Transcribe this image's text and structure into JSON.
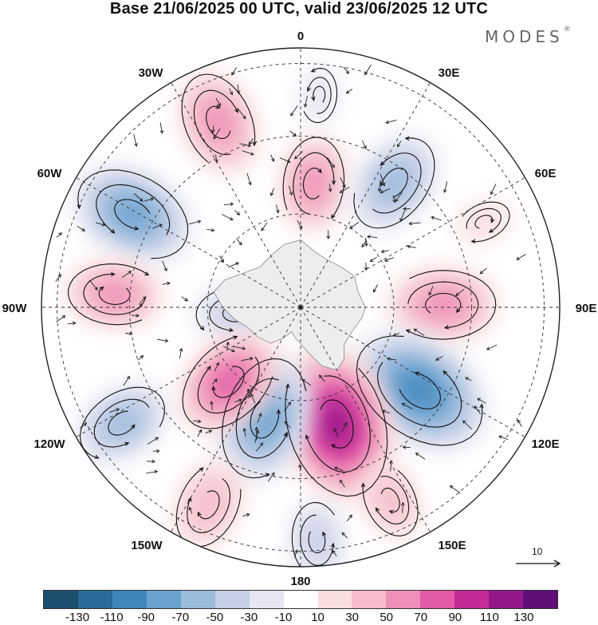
{
  "title": "Base 21/06/2025 00 UTC, valid 23/06/2025 12 UTC",
  "logo": "MODES",
  "logo_mark": "®",
  "longitude_labels": [
    "0",
    "30E",
    "60E",
    "90E",
    "120E",
    "150E",
    "180",
    "150W",
    "120W",
    "90W",
    "60W",
    "30W"
  ],
  "reference_vector": "10",
  "colorbar": {
    "colors": [
      "#1e4e6e",
      "#2a6b98",
      "#3f86bd",
      "#6aa2cf",
      "#9bbbdd",
      "#c6cfe6",
      "#e6e6f2",
      "#ffffff",
      "#f9dede",
      "#f5bdc9",
      "#ef90b8",
      "#e25aa6",
      "#c42b96",
      "#93178a",
      "#5e0f78"
    ],
    "tick_labels": [
      "-130",
      "-110",
      "-90",
      "-70",
      "-50",
      "-30",
      "-10",
      "10",
      "30",
      "50",
      "70",
      "90",
      "110",
      "130"
    ]
  },
  "anomaly_field": {
    "centers": [
      {
        "lon": -24,
        "r": 0.78,
        "value": 70
      },
      {
        "lon": 6,
        "r": 0.48,
        "value": 60
      },
      {
        "lon": 37,
        "r": 0.6,
        "value": -70
      },
      {
        "lon": -61,
        "r": 0.74,
        "value": -90
      },
      {
        "lon": -86,
        "r": 0.72,
        "value": 60
      },
      {
        "lon": -95,
        "r": 0.25,
        "value": -45
      },
      {
        "lon": 89,
        "r": 0.55,
        "value": 75
      },
      {
        "lon": 125,
        "r": 0.56,
        "value": -115
      },
      {
        "lon": 163,
        "r": 0.47,
        "value": 125
      },
      {
        "lon": -162,
        "r": 0.45,
        "value": -95
      },
      {
        "lon": -136,
        "r": 0.4,
        "value": 80
      },
      {
        "lon": -123,
        "r": 0.82,
        "value": -60
      },
      {
        "lon": -155,
        "r": 0.84,
        "value": 55
      },
      {
        "lon": 176,
        "r": 0.9,
        "value": -40
      },
      {
        "lon": 155,
        "r": 0.82,
        "value": 40
      },
      {
        "lon": 65,
        "r": 0.78,
        "value": 15
      },
      {
        "lon": 5,
        "r": 0.82,
        "value": -15
      }
    ]
  }
}
